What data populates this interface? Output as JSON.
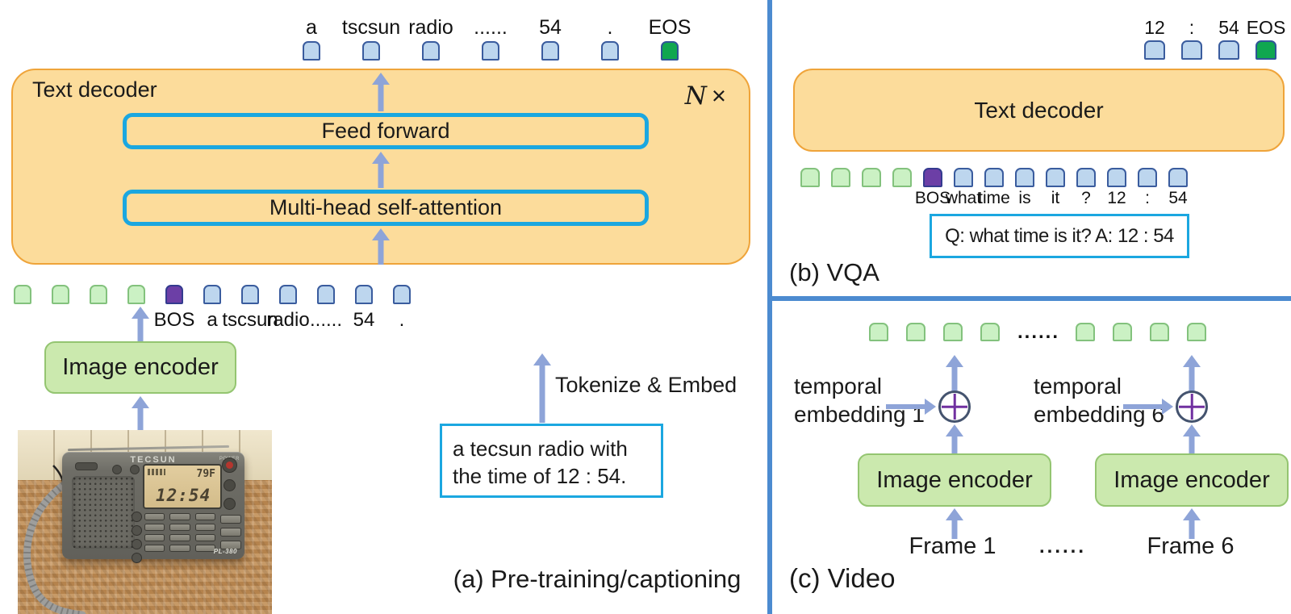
{
  "colors": {
    "accent_cyan": "#1BA7E0",
    "decoder_fill": "#FCDC9B",
    "decoder_border": "#EFA43A",
    "token_blue": "#BDD6EE",
    "token_green": "#CBF1C4",
    "token_purple": "#6C3FA6",
    "token_eos_green": "#10A750",
    "arrow": "#8EA4D8",
    "divider_blue": "#4C8BD0",
    "encoder_fill": "#CBE9AE"
  },
  "panel_a": {
    "caption": "(a) Pre-training/captioning",
    "text_decoder_label": "Text decoder",
    "repeat_n": "N",
    "repeat_times": "×",
    "feed_forward": "Feed forward",
    "self_attention": "Multi-head self-attention",
    "image_encoder": "Image encoder",
    "tokenize_embed": "Tokenize & Embed",
    "caption_box_lines": [
      "a tecsun radio with",
      "the time of 12 : 54."
    ],
    "output_tokens": [
      {
        "t": "text",
        "label": "a"
      },
      {
        "t": "text",
        "label": "tscsun"
      },
      {
        "t": "text",
        "label": "radio"
      },
      {
        "t": "text",
        "label": "......"
      },
      {
        "t": "text",
        "label": "54"
      },
      {
        "t": "text",
        "label": "."
      },
      {
        "t": "eos",
        "label": "EOS"
      }
    ],
    "input_tokens": [
      {
        "t": "image"
      },
      {
        "t": "image"
      },
      {
        "t": "image"
      },
      {
        "t": "image"
      },
      {
        "t": "bos",
        "label": "BOS"
      },
      {
        "t": "text",
        "label": "a"
      },
      {
        "t": "text",
        "label": "tscsun"
      },
      {
        "t": "text",
        "label": "radio"
      },
      {
        "t": "text",
        "label": "......"
      },
      {
        "t": "text",
        "label": "54"
      },
      {
        "t": "text",
        "label": "."
      }
    ],
    "photo": {
      "brand": "TECSUN",
      "model": "PL-380",
      "power_label": "POWER",
      "lcd_time": "12:54",
      "lcd_temp": "79F"
    }
  },
  "panel_b": {
    "caption": "(b) VQA",
    "text_decoder_label": "Text decoder",
    "qa_text": "Q: what time is it? A: 12 : 54",
    "output_tokens": [
      {
        "t": "text",
        "label": "12"
      },
      {
        "t": "text",
        "label": ":"
      },
      {
        "t": "text",
        "label": "54"
      },
      {
        "t": "eos",
        "label": "EOS"
      }
    ],
    "input_tokens": [
      {
        "t": "image"
      },
      {
        "t": "image"
      },
      {
        "t": "image"
      },
      {
        "t": "image"
      },
      {
        "t": "bos",
        "label": "BOS"
      },
      {
        "t": "text",
        "label": "what"
      },
      {
        "t": "text",
        "label": "time"
      },
      {
        "t": "text",
        "label": "is"
      },
      {
        "t": "text",
        "label": "it"
      },
      {
        "t": "text",
        "label": "?"
      },
      {
        "t": "text",
        "label": "12"
      },
      {
        "t": "text",
        "label": ":"
      },
      {
        "t": "text",
        "label": "54"
      }
    ]
  },
  "panel_c": {
    "caption": "(c) Video",
    "tokens": [
      {
        "t": "image"
      },
      {
        "t": "image"
      },
      {
        "t": "image"
      },
      {
        "t": "image"
      },
      {
        "t": "dots",
        "label": "......"
      },
      {
        "t": "image"
      },
      {
        "t": "image"
      },
      {
        "t": "image"
      },
      {
        "t": "image"
      }
    ],
    "groups": [
      {
        "temporal_line1": "temporal",
        "temporal_line2": "embedding 1",
        "encoder": "Image encoder",
        "frame": "Frame 1"
      },
      {
        "temporal_line1": "temporal",
        "temporal_line2": "embedding 6",
        "encoder": "Image encoder",
        "frame": "Frame 6"
      }
    ],
    "frames_dots": "......"
  }
}
